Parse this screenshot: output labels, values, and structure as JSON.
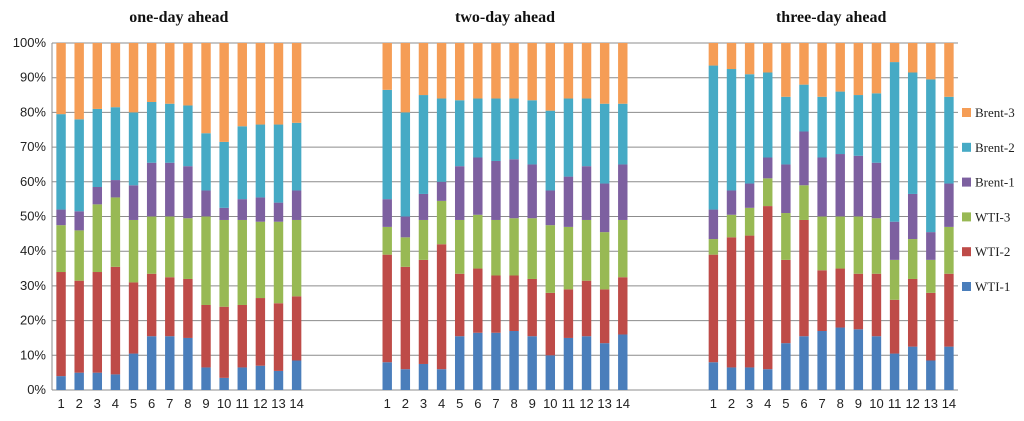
{
  "chart_data": {
    "type": "bar",
    "stacked": "percent",
    "categories": [
      "1",
      "2",
      "3",
      "4",
      "5",
      "6",
      "7",
      "8",
      "9",
      "10",
      "11",
      "12",
      "13",
      "14"
    ],
    "y_ticks": [
      "0%",
      "10%",
      "20%",
      "30%",
      "40%",
      "50%",
      "60%",
      "70%",
      "80%",
      "90%",
      "100%"
    ],
    "ylim": [
      0,
      100
    ],
    "grid": true,
    "legend_position": "right",
    "series_names": [
      "WTI-1",
      "WTI-2",
      "WTI-3",
      "Brent-1",
      "Brent-2",
      "Brent-3"
    ],
    "colors": {
      "WTI-1": "#4a7ebb",
      "WTI-2": "#be4b48",
      "WTI-3": "#98b954",
      "Brent-1": "#7d60a0",
      "Brent-2": "#46aac5",
      "Brent-3": "#f59d56"
    },
    "panels": [
      {
        "title": "one-day ahead",
        "WTI-1": [
          4,
          5,
          5,
          4.5,
          10.5,
          15.5,
          15.5,
          15,
          6.5,
          3.5,
          6.5,
          7,
          5.5,
          8.5
        ],
        "WTI-2": [
          30,
          26.5,
          29,
          31,
          20.5,
          18,
          17,
          17,
          18,
          20.5,
          18,
          19.5,
          19.5,
          18.5
        ],
        "WTI-3": [
          13.5,
          14.5,
          19.5,
          20,
          18,
          16.5,
          17.5,
          17.5,
          25.5,
          25,
          24.5,
          22,
          23.5,
          22
        ],
        "Brent-1": [
          4.5,
          5.5,
          5,
          5,
          10,
          15.5,
          15.5,
          15,
          7.5,
          3.5,
          6,
          7,
          5.5,
          8.5
        ],
        "Brent-2": [
          27.5,
          26.5,
          22.5,
          21,
          21,
          17.5,
          17,
          17.5,
          16.5,
          19,
          21,
          21,
          22.5,
          19.5
        ],
        "Brent-3": [
          20.5,
          22,
          19,
          18.5,
          20,
          17,
          17.5,
          18,
          26,
          28.5,
          24,
          23.5,
          23.5,
          23
        ]
      },
      {
        "title": "two-day ahead",
        "WTI-1": [
          8,
          6,
          7.5,
          6,
          15.5,
          16.5,
          16.5,
          17,
          15.5,
          10,
          15,
          15.5,
          13.5,
          16
        ],
        "WTI-2": [
          31,
          29.5,
          30,
          36,
          18,
          18.5,
          16.5,
          16,
          16.5,
          18,
          14,
          16,
          15.5,
          16.5
        ],
        "WTI-3": [
          8,
          8.5,
          11.5,
          12.5,
          15.5,
          15.5,
          16,
          16.5,
          17.5,
          19.5,
          18,
          17.5,
          16.5,
          16.5
        ],
        "Brent-1": [
          8,
          6,
          7.5,
          5.5,
          15.5,
          16.5,
          17,
          17,
          15.5,
          10,
          14.5,
          15.5,
          14,
          16
        ],
        "Brent-2": [
          31.5,
          30,
          28.5,
          24,
          19,
          17,
          18,
          17.5,
          18.5,
          23,
          22.5,
          19.5,
          23,
          17.5
        ],
        "Brent-3": [
          13.5,
          20,
          15,
          16,
          16.5,
          16,
          16,
          16,
          16.5,
          19.5,
          16,
          16,
          17.5,
          17.5
        ]
      },
      {
        "title": "three-day ahead",
        "WTI-1": [
          8,
          6.5,
          6.5,
          6,
          13.5,
          15.5,
          17,
          18,
          17.5,
          15.5,
          10.5,
          12.5,
          8.5,
          12.5
        ],
        "WTI-2": [
          31,
          37.5,
          38,
          47,
          24,
          33.5,
          17.5,
          17,
          16,
          18,
          15.5,
          19.5,
          19.5,
          21
        ],
        "WTI-3": [
          4.5,
          6.5,
          8,
          8,
          13.5,
          10,
          15.5,
          15,
          16.5,
          16,
          11.5,
          11.5,
          9.5,
          13.5
        ],
        "Brent-1": [
          8.5,
          7,
          7,
          6,
          14,
          15.5,
          17,
          18,
          17.5,
          16,
          11,
          13,
          8,
          12.5
        ],
        "Brent-2": [
          41.5,
          35,
          31.5,
          24.5,
          19.5,
          13.5,
          17.5,
          18,
          17.5,
          20,
          46,
          35,
          44,
          25
        ],
        "Brent-3": [
          6.5,
          7.5,
          9,
          8.5,
          15.5,
          12,
          15.5,
          14,
          15,
          14.5,
          5.5,
          8.5,
          10.5,
          15.5
        ]
      }
    ]
  }
}
